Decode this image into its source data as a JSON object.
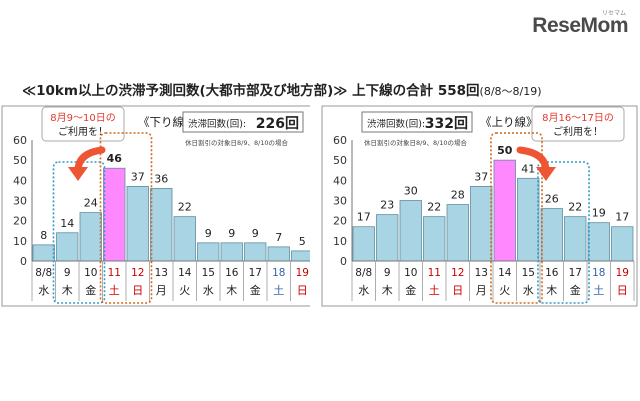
{
  "brand": {
    "name": "ReseMom",
    "kana": "リセマム"
  },
  "title": {
    "main": "≪10km以上の渋滞予測回数(大都市部及び地方部)≫ 上下線の合計 558回",
    "range": "(8/8〜8/19)"
  },
  "colors": {
    "bar": "#a8d4e4",
    "highlight": "#ff88ff",
    "bar_border": "#5f8ea0",
    "holiday": "#cc0000",
    "dotted_blue": "#3399cc",
    "dotted_red": "#d2691e",
    "arrow": "#ee5533",
    "callout": "#e23a2c"
  },
  "chart_data": [
    {
      "type": "bar",
      "direction_label": "《下り線》",
      "total_label": "渋滞回数(回):",
      "total_value": "226回",
      "note": "休日割引の対象日8/9、8/10の場合",
      "callout": [
        "8月9〜10日の",
        "ご利用を！"
      ],
      "categories": [
        "8/8",
        "9",
        "10",
        "11",
        "12",
        "13",
        "14",
        "15",
        "16",
        "17",
        "18",
        "19"
      ],
      "weekdays": [
        "水",
        "木",
        "金",
        "土",
        "日",
        "月",
        "火",
        "水",
        "木",
        "金",
        "土",
        "日"
      ],
      "holiday_days": [
        3,
        4,
        10,
        11
      ],
      "values": [
        8,
        14,
        24,
        46,
        37,
        36,
        22,
        9,
        9,
        9,
        7,
        5
      ],
      "highlight_index": 3,
      "yticks": [
        0,
        10,
        20,
        30,
        40,
        50,
        60
      ],
      "ylim": [
        0,
        60
      ]
    },
    {
      "type": "bar",
      "direction_label": "《上り線》",
      "total_label": "渋滞回数(回):",
      "total_value": "332回",
      "note": "休日割引の対象日8/9、8/10の場合",
      "callout": [
        "8月16〜17日の",
        "ご利用を！"
      ],
      "categories": [
        "8/8",
        "9",
        "10",
        "11",
        "12",
        "13",
        "14",
        "15",
        "16",
        "17",
        "18",
        "19"
      ],
      "weekdays": [
        "水",
        "木",
        "金",
        "土",
        "日",
        "月",
        "火",
        "水",
        "木",
        "金",
        "土",
        "日"
      ],
      "holiday_days": [
        3,
        4,
        10,
        11
      ],
      "values": [
        17,
        23,
        30,
        22,
        28,
        37,
        50,
        41,
        26,
        22,
        19,
        17
      ],
      "highlight_index": 6,
      "yticks": [
        0,
        10,
        20,
        30,
        40,
        50,
        60
      ],
      "ylim": [
        0,
        60
      ]
    }
  ]
}
